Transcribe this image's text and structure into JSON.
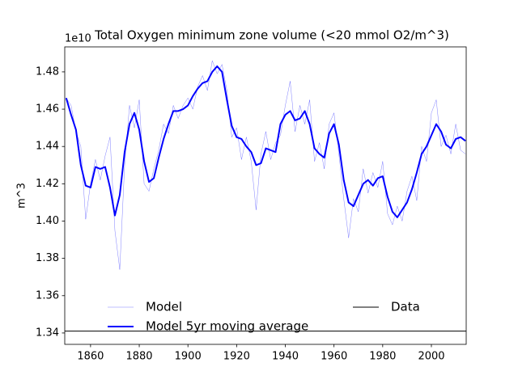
{
  "chart_data": {
    "type": "line",
    "title": "Total Oxygen minimum zone volume (<20 mmol O2/m^3)",
    "y_label": "m^3",
    "y_offset_label": "1e10",
    "x": [
      1850,
      1852,
      1854,
      1856,
      1858,
      1860,
      1862,
      1864,
      1866,
      1868,
      1870,
      1872,
      1874,
      1876,
      1878,
      1880,
      1882,
      1884,
      1886,
      1888,
      1890,
      1892,
      1894,
      1896,
      1898,
      1900,
      1902,
      1904,
      1906,
      1908,
      1910,
      1912,
      1914,
      1916,
      1918,
      1920,
      1922,
      1924,
      1926,
      1928,
      1930,
      1932,
      1934,
      1936,
      1938,
      1940,
      1942,
      1944,
      1946,
      1948,
      1950,
      1952,
      1954,
      1956,
      1958,
      1960,
      1962,
      1964,
      1966,
      1968,
      1970,
      1972,
      1974,
      1976,
      1978,
      1980,
      1982,
      1984,
      1986,
      1988,
      1990,
      1992,
      1994,
      1996,
      1998,
      2000,
      2002,
      2004,
      2006,
      2008,
      2010,
      2012,
      2014
    ],
    "series": [
      {
        "name": "Model",
        "color": "#0000ff",
        "width": 0.5,
        "opacity": 0.5,
        "values": [
          1.466,
          1.462,
          1.448,
          1.44,
          1.401,
          1.42,
          1.433,
          1.422,
          1.435,
          1.445,
          1.395,
          1.374,
          1.43,
          1.462,
          1.45,
          1.465,
          1.42,
          1.416,
          1.428,
          1.438,
          1.452,
          1.447,
          1.462,
          1.455,
          1.462,
          1.466,
          1.46,
          1.472,
          1.478,
          1.47,
          1.486,
          1.479,
          1.484,
          1.47,
          1.445,
          1.45,
          1.433,
          1.445,
          1.432,
          1.406,
          1.436,
          1.448,
          1.433,
          1.442,
          1.446,
          1.462,
          1.475,
          1.448,
          1.462,
          1.452,
          1.465,
          1.432,
          1.442,
          1.428,
          1.452,
          1.458,
          1.436,
          1.412,
          1.391,
          1.412,
          1.405,
          1.428,
          1.415,
          1.426,
          1.418,
          1.432,
          1.404,
          1.398,
          1.408,
          1.4,
          1.416,
          1.424,
          1.411,
          1.44,
          1.432,
          1.458,
          1.465,
          1.44,
          1.446,
          1.436,
          1.452,
          1.438,
          1.436
        ]
      },
      {
        "name": "Model 5yr moving average",
        "color": "#0000ff",
        "width": 2,
        "opacity": 1,
        "values": [
          1.466,
          1.457,
          1.449,
          1.43,
          1.419,
          1.418,
          1.429,
          1.428,
          1.429,
          1.418,
          1.403,
          1.414,
          1.437,
          1.452,
          1.458,
          1.449,
          1.432,
          1.421,
          1.423,
          1.434,
          1.444,
          1.452,
          1.459,
          1.459,
          1.46,
          1.462,
          1.467,
          1.471,
          1.474,
          1.475,
          1.48,
          1.483,
          1.48,
          1.465,
          1.451,
          1.445,
          1.444,
          1.44,
          1.437,
          1.43,
          1.431,
          1.439,
          1.438,
          1.437,
          1.452,
          1.457,
          1.459,
          1.454,
          1.455,
          1.459,
          1.452,
          1.439,
          1.436,
          1.434,
          1.447,
          1.452,
          1.441,
          1.422,
          1.41,
          1.408,
          1.414,
          1.42,
          1.422,
          1.419,
          1.423,
          1.424,
          1.413,
          1.405,
          1.402,
          1.406,
          1.41,
          1.417,
          1.426,
          1.436,
          1.44,
          1.446,
          1.452,
          1.448,
          1.441,
          1.439,
          1.444,
          1.445,
          1.443
        ]
      }
    ],
    "reference_lines": [
      {
        "name": "Data",
        "color": "#000000",
        "value": 1.341
      }
    ],
    "xlim": [
      1849.4,
      2014.3
    ],
    "ylim": [
      1.3339,
      1.4934
    ],
    "xticks": [
      1860,
      1880,
      1900,
      1920,
      1940,
      1960,
      1980,
      2000
    ],
    "yticks": [
      1.34,
      1.36,
      1.38,
      {
        "value": 1.4,
        "label": "1.40"
      },
      1.42,
      1.44,
      1.46,
      1.48
    ],
    "legend": "lower center",
    "grid": false
  }
}
